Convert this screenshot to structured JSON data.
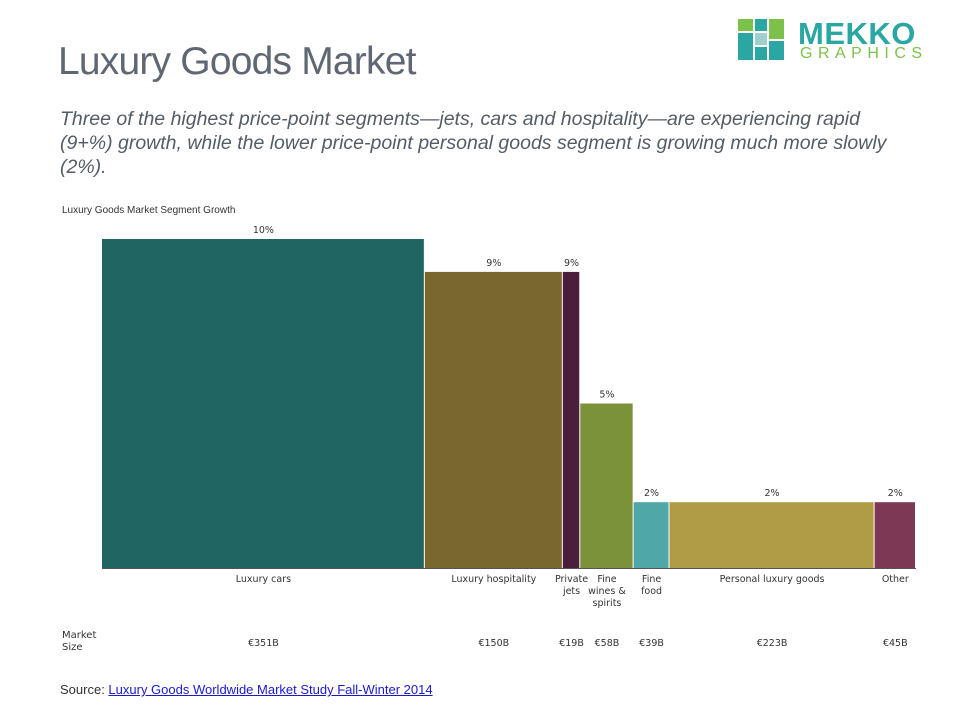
{
  "header": {
    "title": "Luxury Goods Market",
    "subtitle": "Three of the highest price-point segments—jets, cars and hospitality—are experiencing rapid (9+%) growth, while the lower price-point personal goods segment is growing much more slowly (2%).",
    "logo_word1": "MEKKO",
    "logo_word2": "GRAPHICS"
  },
  "market_size_label": [
    "Market",
    "Size"
  ],
  "source": {
    "prefix": "Source: ",
    "link_text": "Luxury Goods Worldwide Market Study Fall-Winter 2014"
  },
  "colors": {
    "logo_teal": "#2aa7a2",
    "logo_green": "#7cc24a",
    "title_gray": "#5f6773"
  },
  "chart_data": {
    "type": "bar",
    "variant": "variable-width (mekko) bar",
    "title": "Luxury Goods Market Segment Growth",
    "ylim": [
      0,
      10
    ],
    "grid": false,
    "categories": [
      "Luxury cars",
      "Luxury hospitality",
      "Private jets",
      "Fine wines & spirits",
      "Fine food",
      "Personal luxury goods",
      "Other"
    ],
    "category_lines": [
      [
        "Luxury cars"
      ],
      [
        "Luxury hospitality"
      ],
      [
        "Private",
        "jets"
      ],
      [
        "Fine",
        "wines &",
        "spirits"
      ],
      [
        "Fine",
        "food"
      ],
      [
        "Personal luxury goods"
      ],
      [
        "Other"
      ]
    ],
    "growth_values": [
      10,
      9,
      9,
      5,
      2,
      2,
      2
    ],
    "growth_labels": [
      "10%",
      "9%",
      "9%",
      "5%",
      "2%",
      "2%",
      "2%"
    ],
    "market_size_values": [
      351,
      150,
      19,
      58,
      39,
      223,
      45
    ],
    "market_size_labels": [
      "€351B",
      "€150B",
      "€19B",
      "€58B",
      "€39B",
      "€223B",
      "€45B"
    ],
    "colors": [
      "#216563",
      "#7a672e",
      "#4b1f3c",
      "#7b9238",
      "#4fa7a8",
      "#b09c47",
      "#7c3956"
    ]
  }
}
